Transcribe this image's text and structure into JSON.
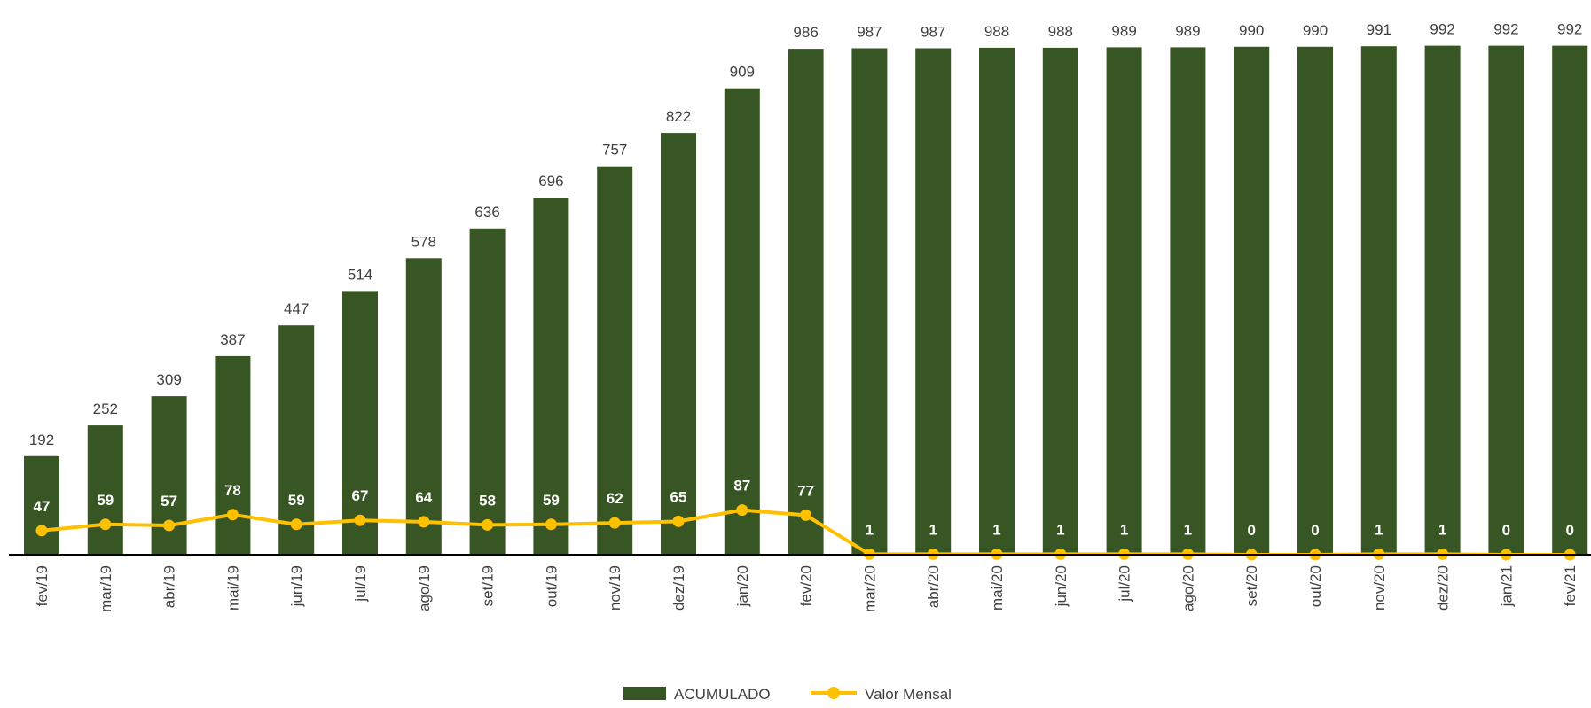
{
  "chart_data": {
    "type": "bar",
    "title": "",
    "xlabel": "",
    "ylabel": "",
    "categories": [
      "fev/19",
      "mar/19",
      "abr/19",
      "mai/19",
      "jun/19",
      "jul/19",
      "ago/19",
      "set/19",
      "out/19",
      "nov/19",
      "dez/19",
      "jan/20",
      "fev/20",
      "mar/20",
      "abr/20",
      "mai/20",
      "jun/20",
      "jul/20",
      "ago/20",
      "set/20",
      "out/20",
      "nov/20",
      "dez/20",
      "jan/21",
      "fev/21"
    ],
    "series": [
      {
        "name": "ACUMULADO",
        "type": "bar",
        "color": "#375623",
        "values": [
          192,
          252,
          309,
          387,
          447,
          514,
          578,
          636,
          696,
          757,
          822,
          909,
          986,
          987,
          987,
          988,
          988,
          989,
          989,
          990,
          990,
          991,
          992,
          992,
          992
        ]
      },
      {
        "name": "Valor Mensal",
        "type": "line",
        "color": "#FFC000",
        "values": [
          47,
          59,
          57,
          78,
          59,
          67,
          64,
          58,
          59,
          62,
          65,
          87,
          77,
          1,
          1,
          1,
          1,
          1,
          1,
          0,
          0,
          1,
          1,
          0,
          0
        ]
      }
    ],
    "ylim": [
      0,
      1000
    ],
    "grid": false,
    "legend": "bottom-center"
  }
}
